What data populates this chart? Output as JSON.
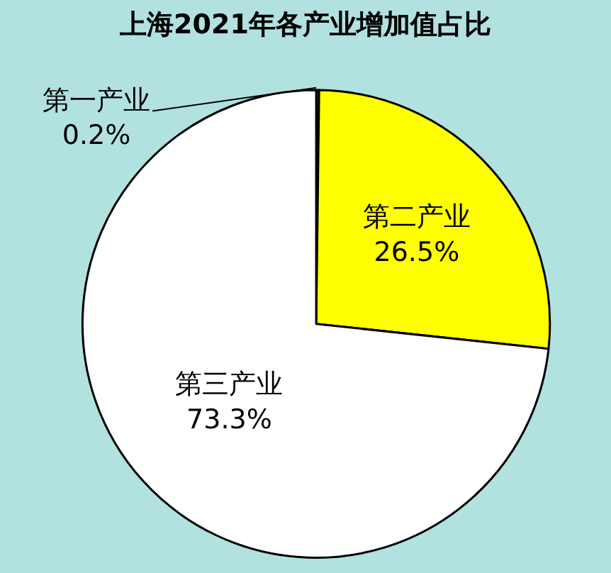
{
  "chart_data": {
    "type": "pie",
    "title": "上海2021年各产业增加值占比",
    "categories": [
      "第一产业",
      "第二产业",
      "第三产业"
    ],
    "values": [
      0.2,
      26.5,
      73.3
    ],
    "value_labels": [
      "0.2%",
      "26.5%",
      "73.3%"
    ],
    "colors": [
      "#1a6b3a",
      "#ffff00",
      "#ffffff"
    ],
    "legend": false
  }
}
